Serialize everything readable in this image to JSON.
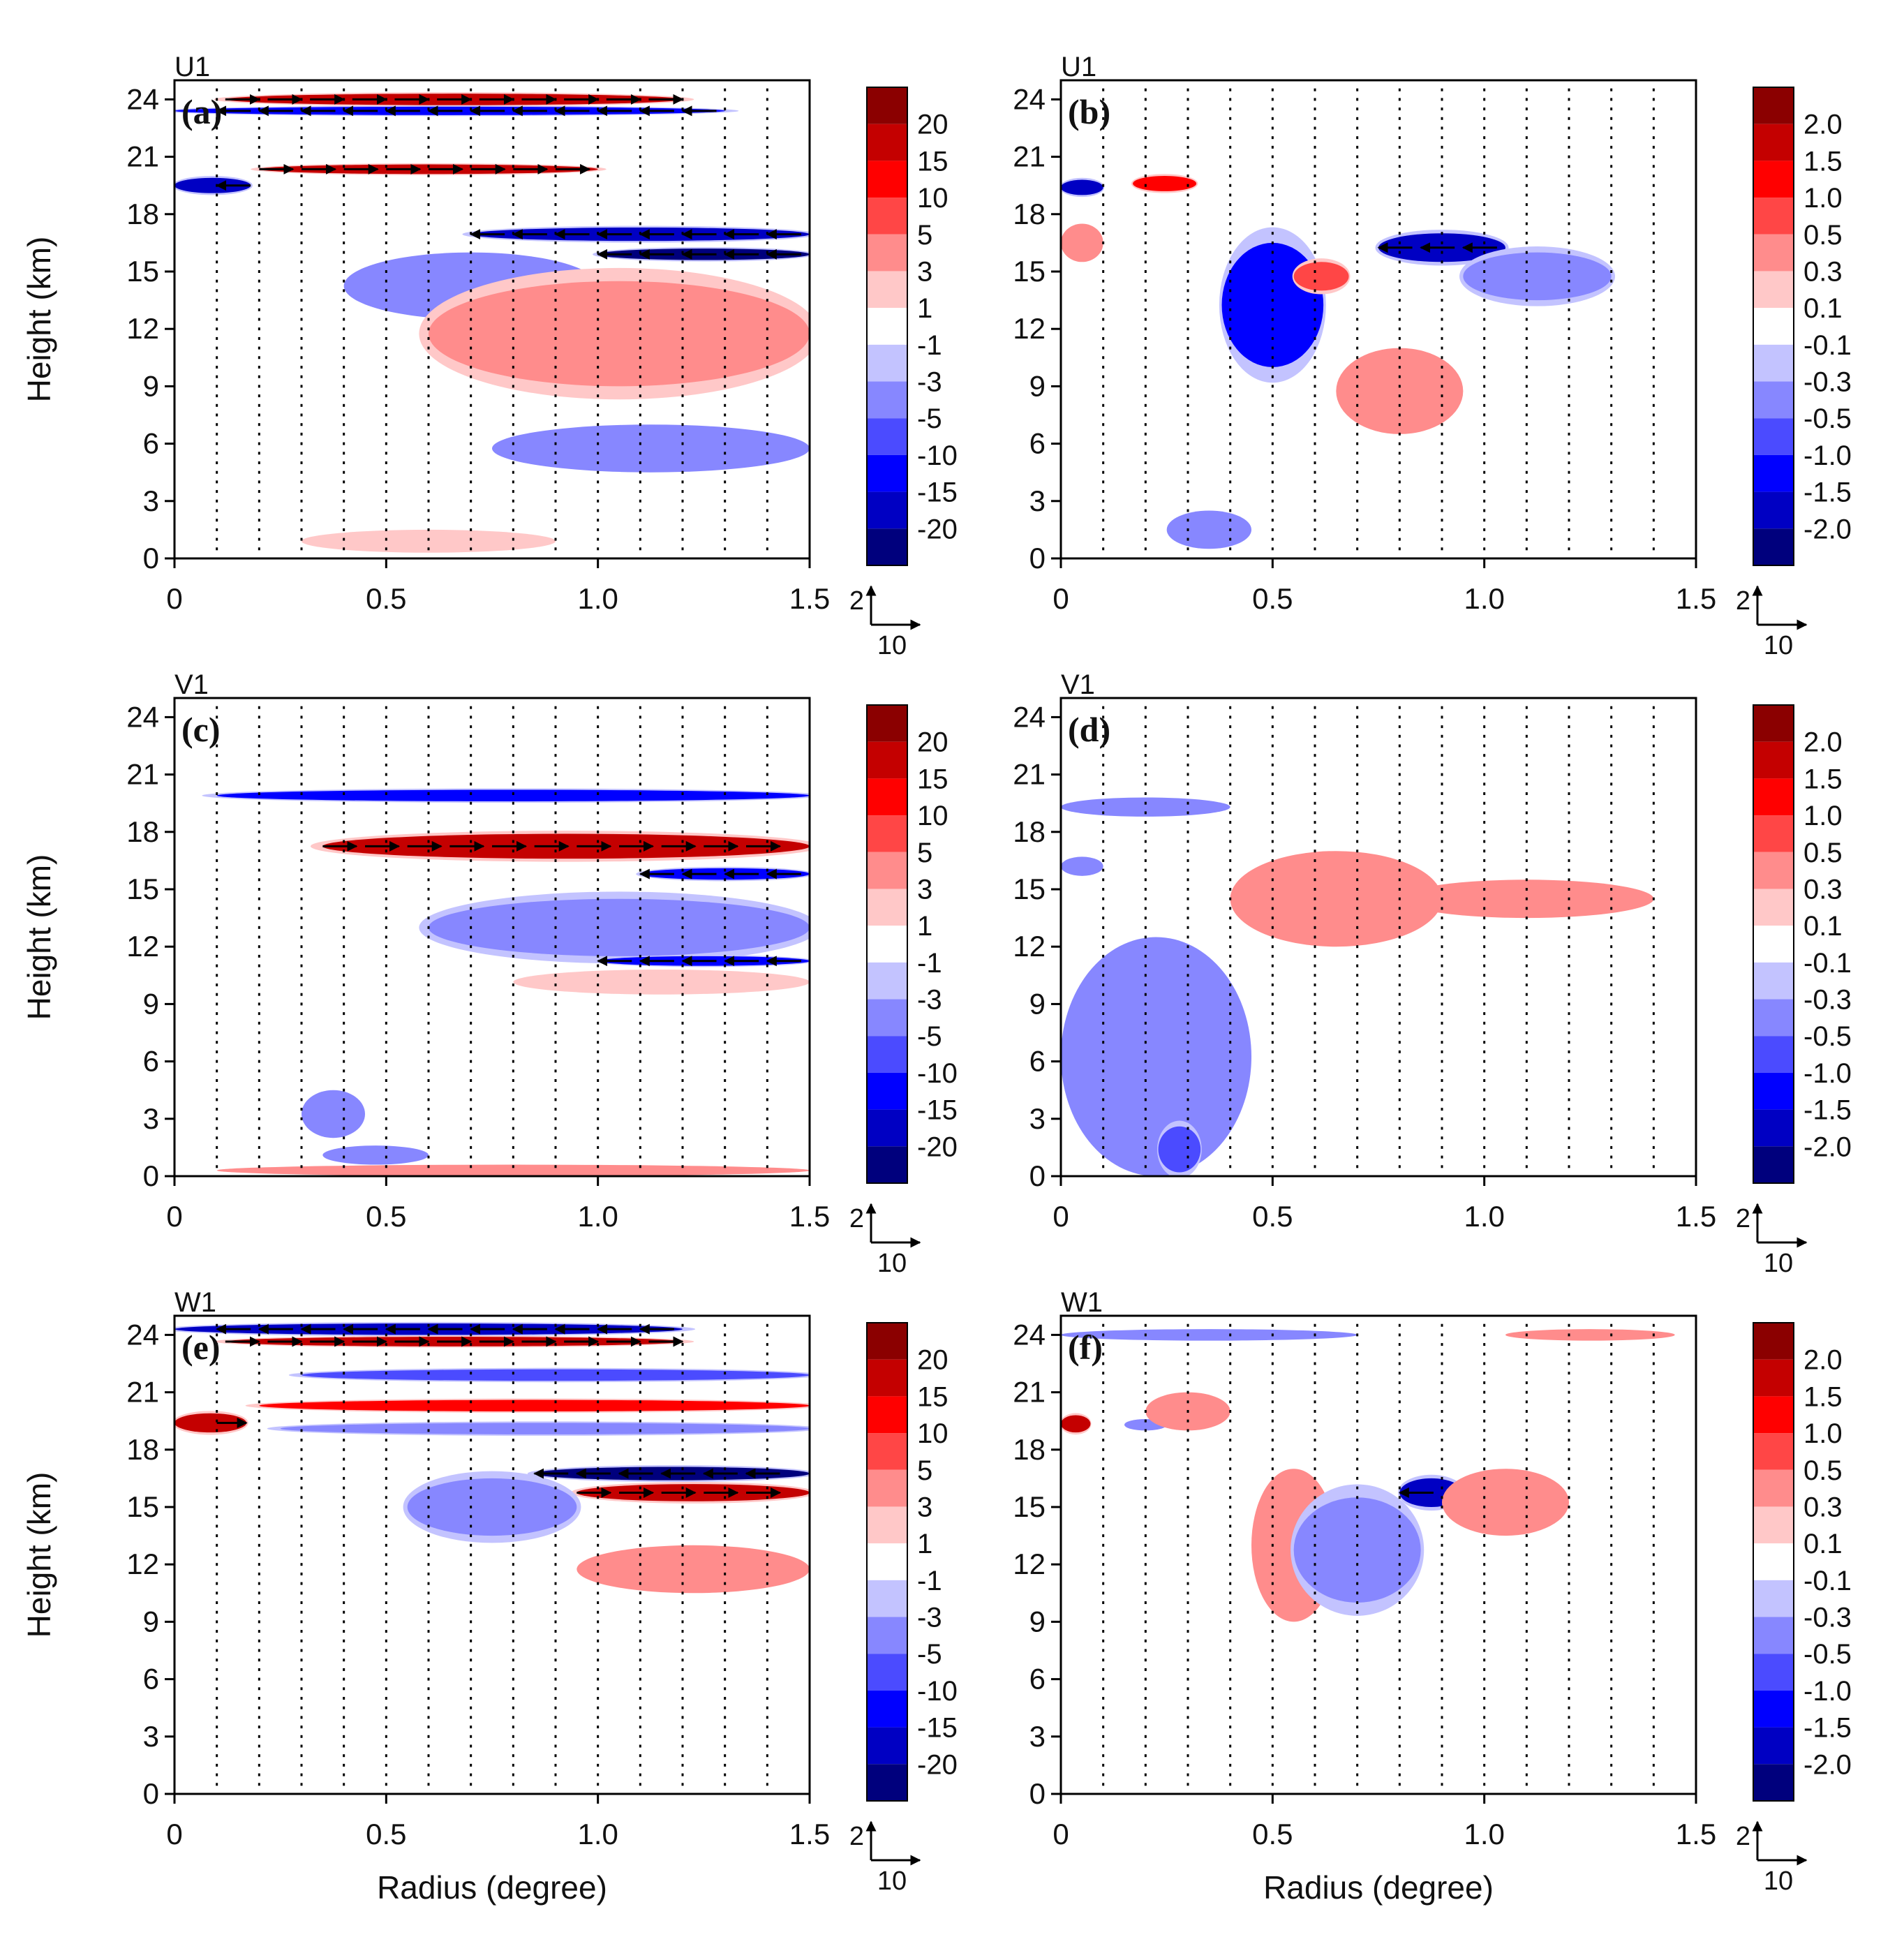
{
  "figure": {
    "xlabel": "Radius (degree)",
    "ylabel": "Height (km)",
    "reference_vector": {
      "vertical_label": "2",
      "horizontal_label": "10"
    }
  },
  "colorbars": {
    "large": [
      "20",
      "15",
      "10",
      "5",
      "3",
      "1",
      "-1",
      "-3",
      "-5",
      "-10",
      "-15",
      "-20"
    ],
    "small": [
      "2.0",
      "1.5",
      "1.0",
      "0.5",
      "0.3",
      "0.1",
      "-0.1",
      "-0.3",
      "-0.5",
      "-1.0",
      "-1.5",
      "-2.0"
    ],
    "colors": [
      "#8b0000",
      "#c40000",
      "#ff0000",
      "#ff4646",
      "#ff8c8c",
      "#ffc8c8",
      "#ffffff",
      "#c3c3ff",
      "#8787ff",
      "#4b4bff",
      "#0000ff",
      "#0000c3",
      "#00007d"
    ]
  },
  "chart_data": [
    {
      "panel": "(a)",
      "variable": "U1",
      "type": "heatmap",
      "xlabel": "",
      "ylabel": "Height (km)",
      "xlim": [
        0,
        1.5
      ],
      "ylim": [
        0,
        25
      ],
      "xticks": [
        "0",
        "0.5",
        "1.0",
        "1.5"
      ],
      "yticks": [
        "0",
        "3",
        "6",
        "9",
        "12",
        "15",
        "18",
        "21",
        "24"
      ],
      "levels": [
        -20,
        -15,
        -10,
        -5,
        -3,
        -1,
        1,
        3,
        5,
        10,
        15,
        20
      ],
      "features": [
        {
          "sign": 1,
          "intensity": 0.75,
          "x": [
            0.12,
            1.2
          ],
          "y": [
            23.7,
            24.3
          ]
        },
        {
          "sign": -1,
          "intensity": 0.7,
          "x": [
            0.0,
            1.3
          ],
          "y": [
            23.2,
            23.6
          ]
        },
        {
          "sign": 1,
          "intensity": 0.75,
          "x": [
            0.2,
            1.0
          ],
          "y": [
            20.1,
            20.6
          ]
        },
        {
          "sign": -1,
          "intensity": 0.9,
          "x": [
            0.0,
            0.18
          ],
          "y": [
            19.1,
            19.9
          ]
        },
        {
          "sign": -1,
          "intensity": 0.85,
          "x": [
            0.7,
            1.5
          ],
          "y": [
            16.6,
            17.3
          ]
        },
        {
          "sign": -1,
          "intensity": 1.0,
          "x": [
            1.0,
            1.5
          ],
          "y": [
            15.6,
            16.2
          ]
        },
        {
          "sign": -1,
          "intensity": 0.3,
          "x": [
            0.4,
            1.0
          ],
          "y": [
            12.5,
            16.0
          ]
        },
        {
          "sign": 1,
          "intensity": 0.35,
          "x": [
            0.6,
            1.5
          ],
          "y": [
            9.0,
            14.5
          ]
        },
        {
          "sign": -1,
          "intensity": 0.25,
          "x": [
            0.75,
            1.5
          ],
          "y": [
            4.5,
            7.0
          ]
        },
        {
          "sign": 1,
          "intensity": 0.2,
          "x": [
            0.3,
            0.9
          ],
          "y": [
            0.3,
            1.5
          ]
        }
      ]
    },
    {
      "panel": "(b)",
      "variable": "U1",
      "type": "heatmap",
      "xlabel": "",
      "ylabel": "",
      "xlim": [
        0,
        1.5
      ],
      "ylim": [
        0,
        25
      ],
      "xticks": [
        "0",
        "0.5",
        "1.0",
        "1.5"
      ],
      "yticks": [
        "0",
        "3",
        "6",
        "9",
        "12",
        "15",
        "18",
        "21",
        "24"
      ],
      "levels": [
        -2.0,
        -1.5,
        -1.0,
        -0.5,
        -0.3,
        -0.1,
        0.1,
        0.3,
        0.5,
        1.0,
        1.5,
        2.0
      ],
      "features": [
        {
          "sign": -1,
          "intensity": 0.85,
          "x": [
            0.0,
            0.1
          ],
          "y": [
            19.0,
            19.8
          ]
        },
        {
          "sign": 1,
          "intensity": 0.6,
          "x": [
            0.17,
            0.32
          ],
          "y": [
            19.2,
            20.0
          ]
        },
        {
          "sign": -1,
          "intensity": 0.6,
          "x": [
            0.38,
            0.62
          ],
          "y": [
            10.0,
            16.5
          ]
        },
        {
          "sign": 1,
          "intensity": 0.5,
          "x": [
            0.55,
            0.68
          ],
          "y": [
            14.0,
            15.5
          ]
        },
        {
          "sign": -1,
          "intensity": 0.8,
          "x": [
            0.75,
            1.05
          ],
          "y": [
            15.5,
            17.0
          ]
        },
        {
          "sign": -1,
          "intensity": 0.4,
          "x": [
            0.95,
            1.3
          ],
          "y": [
            13.5,
            16.0
          ]
        },
        {
          "sign": 1,
          "intensity": 0.3,
          "x": [
            0.65,
            0.95
          ],
          "y": [
            6.5,
            11.0
          ]
        },
        {
          "sign": -1,
          "intensity": 0.3,
          "x": [
            0.25,
            0.45
          ],
          "y": [
            0.5,
            2.5
          ]
        },
        {
          "sign": 1,
          "intensity": 0.25,
          "x": [
            0.0,
            0.1
          ],
          "y": [
            15.5,
            17.5
          ]
        }
      ]
    },
    {
      "panel": "(c)",
      "variable": "V1",
      "type": "heatmap",
      "xlabel": "",
      "ylabel": "Height (km)",
      "xlim": [
        0,
        1.5
      ],
      "ylim": [
        0,
        25
      ],
      "xticks": [
        "0",
        "0.5",
        "1.0",
        "1.5"
      ],
      "yticks": [
        "0",
        "3",
        "6",
        "9",
        "12",
        "15",
        "18",
        "21",
        "24"
      ],
      "levels": [
        -20,
        -15,
        -10,
        -5,
        -3,
        -1,
        1,
        3,
        5,
        10,
        15,
        20
      ],
      "features": [
        {
          "sign": -1,
          "intensity": 0.65,
          "x": [
            0.1,
            1.5
          ],
          "y": [
            19.6,
            20.2
          ]
        },
        {
          "sign": 1,
          "intensity": 0.75,
          "x": [
            0.35,
            1.5
          ],
          "y": [
            16.6,
            17.9
          ]
        },
        {
          "sign": -1,
          "intensity": 0.7,
          "x": [
            1.1,
            1.5
          ],
          "y": [
            15.5,
            16.1
          ]
        },
        {
          "sign": -1,
          "intensity": 0.35,
          "x": [
            0.6,
            1.5
          ],
          "y": [
            11.5,
            14.5
          ]
        },
        {
          "sign": -1,
          "intensity": 0.7,
          "x": [
            1.0,
            1.5
          ],
          "y": [
            11.0,
            11.5
          ]
        },
        {
          "sign": 1,
          "intensity": 0.2,
          "x": [
            0.8,
            1.5
          ],
          "y": [
            9.5,
            10.8
          ]
        },
        {
          "sign": -1,
          "intensity": 0.25,
          "x": [
            0.3,
            0.45
          ],
          "y": [
            2.0,
            4.5
          ]
        },
        {
          "sign": -1,
          "intensity": 0.3,
          "x": [
            0.35,
            0.6
          ],
          "y": [
            0.6,
            1.6
          ]
        },
        {
          "sign": 1,
          "intensity": 0.25,
          "x": [
            0.1,
            1.5
          ],
          "y": [
            0.0,
            0.6
          ]
        }
      ]
    },
    {
      "panel": "(d)",
      "variable": "V1",
      "type": "heatmap",
      "xlabel": "",
      "ylabel": "",
      "xlim": [
        0,
        1.5
      ],
      "ylim": [
        0,
        25
      ],
      "xticks": [
        "0",
        "0.5",
        "1.0",
        "1.5"
      ],
      "yticks": [
        "0",
        "3",
        "6",
        "9",
        "12",
        "15",
        "18",
        "21",
        "24"
      ],
      "levels": [
        -2.0,
        -1.5,
        -1.0,
        -0.5,
        -0.3,
        -0.1,
        0.1,
        0.3,
        0.5,
        1.0,
        1.5,
        2.0
      ],
      "features": [
        {
          "sign": -1,
          "intensity": 0.25,
          "x": [
            0.0,
            0.4
          ],
          "y": [
            18.8,
            19.8
          ]
        },
        {
          "sign": -1,
          "intensity": 0.25,
          "x": [
            0.0,
            0.1
          ],
          "y": [
            15.7,
            16.7
          ]
        },
        {
          "sign": 1,
          "intensity": 0.3,
          "x": [
            0.4,
            0.9
          ],
          "y": [
            12.0,
            17.0
          ]
        },
        {
          "sign": 1,
          "intensity": 0.25,
          "x": [
            0.8,
            1.4
          ],
          "y": [
            13.5,
            15.5
          ]
        },
        {
          "sign": -1,
          "intensity": 0.3,
          "x": [
            0.0,
            0.45
          ],
          "y": [
            0.0,
            12.5
          ]
        },
        {
          "sign": -1,
          "intensity": 0.5,
          "x": [
            0.23,
            0.33
          ],
          "y": [
            0.2,
            2.6
          ]
        }
      ]
    },
    {
      "panel": "(e)",
      "variable": "W1",
      "type": "heatmap",
      "xlabel": "Radius (degree)",
      "ylabel": "Height (km)",
      "xlim": [
        0,
        1.5
      ],
      "ylim": [
        0,
        25
      ],
      "xticks": [
        "0",
        "0.5",
        "1.0",
        "1.5"
      ],
      "yticks": [
        "0",
        "3",
        "6",
        "9",
        "12",
        "15",
        "18",
        "21",
        "24"
      ],
      "levels": [
        -20,
        -15,
        -10,
        -5,
        -3,
        -1,
        1,
        3,
        5,
        10,
        15,
        20
      ],
      "features": [
        {
          "sign": -1,
          "intensity": 0.75,
          "x": [
            0.0,
            1.2
          ],
          "y": [
            24.0,
            24.6
          ]
        },
        {
          "sign": 1,
          "intensity": 0.8,
          "x": [
            0.12,
            1.2
          ],
          "y": [
            23.4,
            23.9
          ]
        },
        {
          "sign": -1,
          "intensity": 0.55,
          "x": [
            0.3,
            1.5
          ],
          "y": [
            21.6,
            22.2
          ]
        },
        {
          "sign": 1,
          "intensity": 0.6,
          "x": [
            0.2,
            1.5
          ],
          "y": [
            20.0,
            20.6
          ]
        },
        {
          "sign": 1,
          "intensity": 0.85,
          "x": [
            0.0,
            0.17
          ],
          "y": [
            18.9,
            19.9
          ]
        },
        {
          "sign": -1,
          "intensity": 0.4,
          "x": [
            0.25,
            1.5
          ],
          "y": [
            18.8,
            19.4
          ]
        },
        {
          "sign": -1,
          "intensity": 1.0,
          "x": [
            0.85,
            1.5
          ],
          "y": [
            16.4,
            17.1
          ]
        },
        {
          "sign": 1,
          "intensity": 0.85,
          "x": [
            0.95,
            1.5
          ],
          "y": [
            15.3,
            16.2
          ]
        },
        {
          "sign": -1,
          "intensity": 0.35,
          "x": [
            0.55,
            0.95
          ],
          "y": [
            13.5,
            16.5
          ]
        },
        {
          "sign": 1,
          "intensity": 0.25,
          "x": [
            0.95,
            1.5
          ],
          "y": [
            10.5,
            13.0
          ]
        }
      ]
    },
    {
      "panel": "(f)",
      "variable": "W1",
      "type": "heatmap",
      "xlabel": "Radius (degree)",
      "ylabel": "",
      "xlim": [
        0,
        1.5
      ],
      "ylim": [
        0,
        25
      ],
      "xticks": [
        "0",
        "0.5",
        "1.0",
        "1.5"
      ],
      "yticks": [
        "0",
        "3",
        "6",
        "9",
        "12",
        "15",
        "18",
        "21",
        "24"
      ],
      "levels": [
        -2.0,
        -1.5,
        -1.0,
        -0.5,
        -0.3,
        -0.1,
        0.1,
        0.3,
        0.5,
        1.0,
        1.5,
        2.0
      ],
      "features": [
        {
          "sign": -1,
          "intensity": 0.25,
          "x": [
            0.0,
            0.7
          ],
          "y": [
            23.7,
            24.3
          ]
        },
        {
          "sign": 1,
          "intensity": 0.25,
          "x": [
            1.05,
            1.45
          ],
          "y": [
            23.7,
            24.3
          ]
        },
        {
          "sign": 1,
          "intensity": 0.8,
          "x": [
            0.0,
            0.07
          ],
          "y": [
            18.9,
            19.8
          ]
        },
        {
          "sign": -1,
          "intensity": 0.3,
          "x": [
            0.15,
            0.25
          ],
          "y": [
            19.0,
            19.6
          ]
        },
        {
          "sign": 1,
          "intensity": 0.25,
          "x": [
            0.2,
            0.4
          ],
          "y": [
            19.0,
            21.0
          ]
        },
        {
          "sign": 1,
          "intensity": 0.3,
          "x": [
            0.45,
            0.65
          ],
          "y": [
            9.0,
            17.0
          ]
        },
        {
          "sign": -1,
          "intensity": 0.35,
          "x": [
            0.55,
            0.85
          ],
          "y": [
            10.0,
            15.5
          ]
        },
        {
          "sign": -1,
          "intensity": 0.75,
          "x": [
            0.8,
            0.95
          ],
          "y": [
            15.0,
            16.5
          ]
        },
        {
          "sign": 1,
          "intensity": 0.3,
          "x": [
            0.9,
            1.2
          ],
          "y": [
            13.5,
            17.0
          ]
        }
      ]
    }
  ]
}
